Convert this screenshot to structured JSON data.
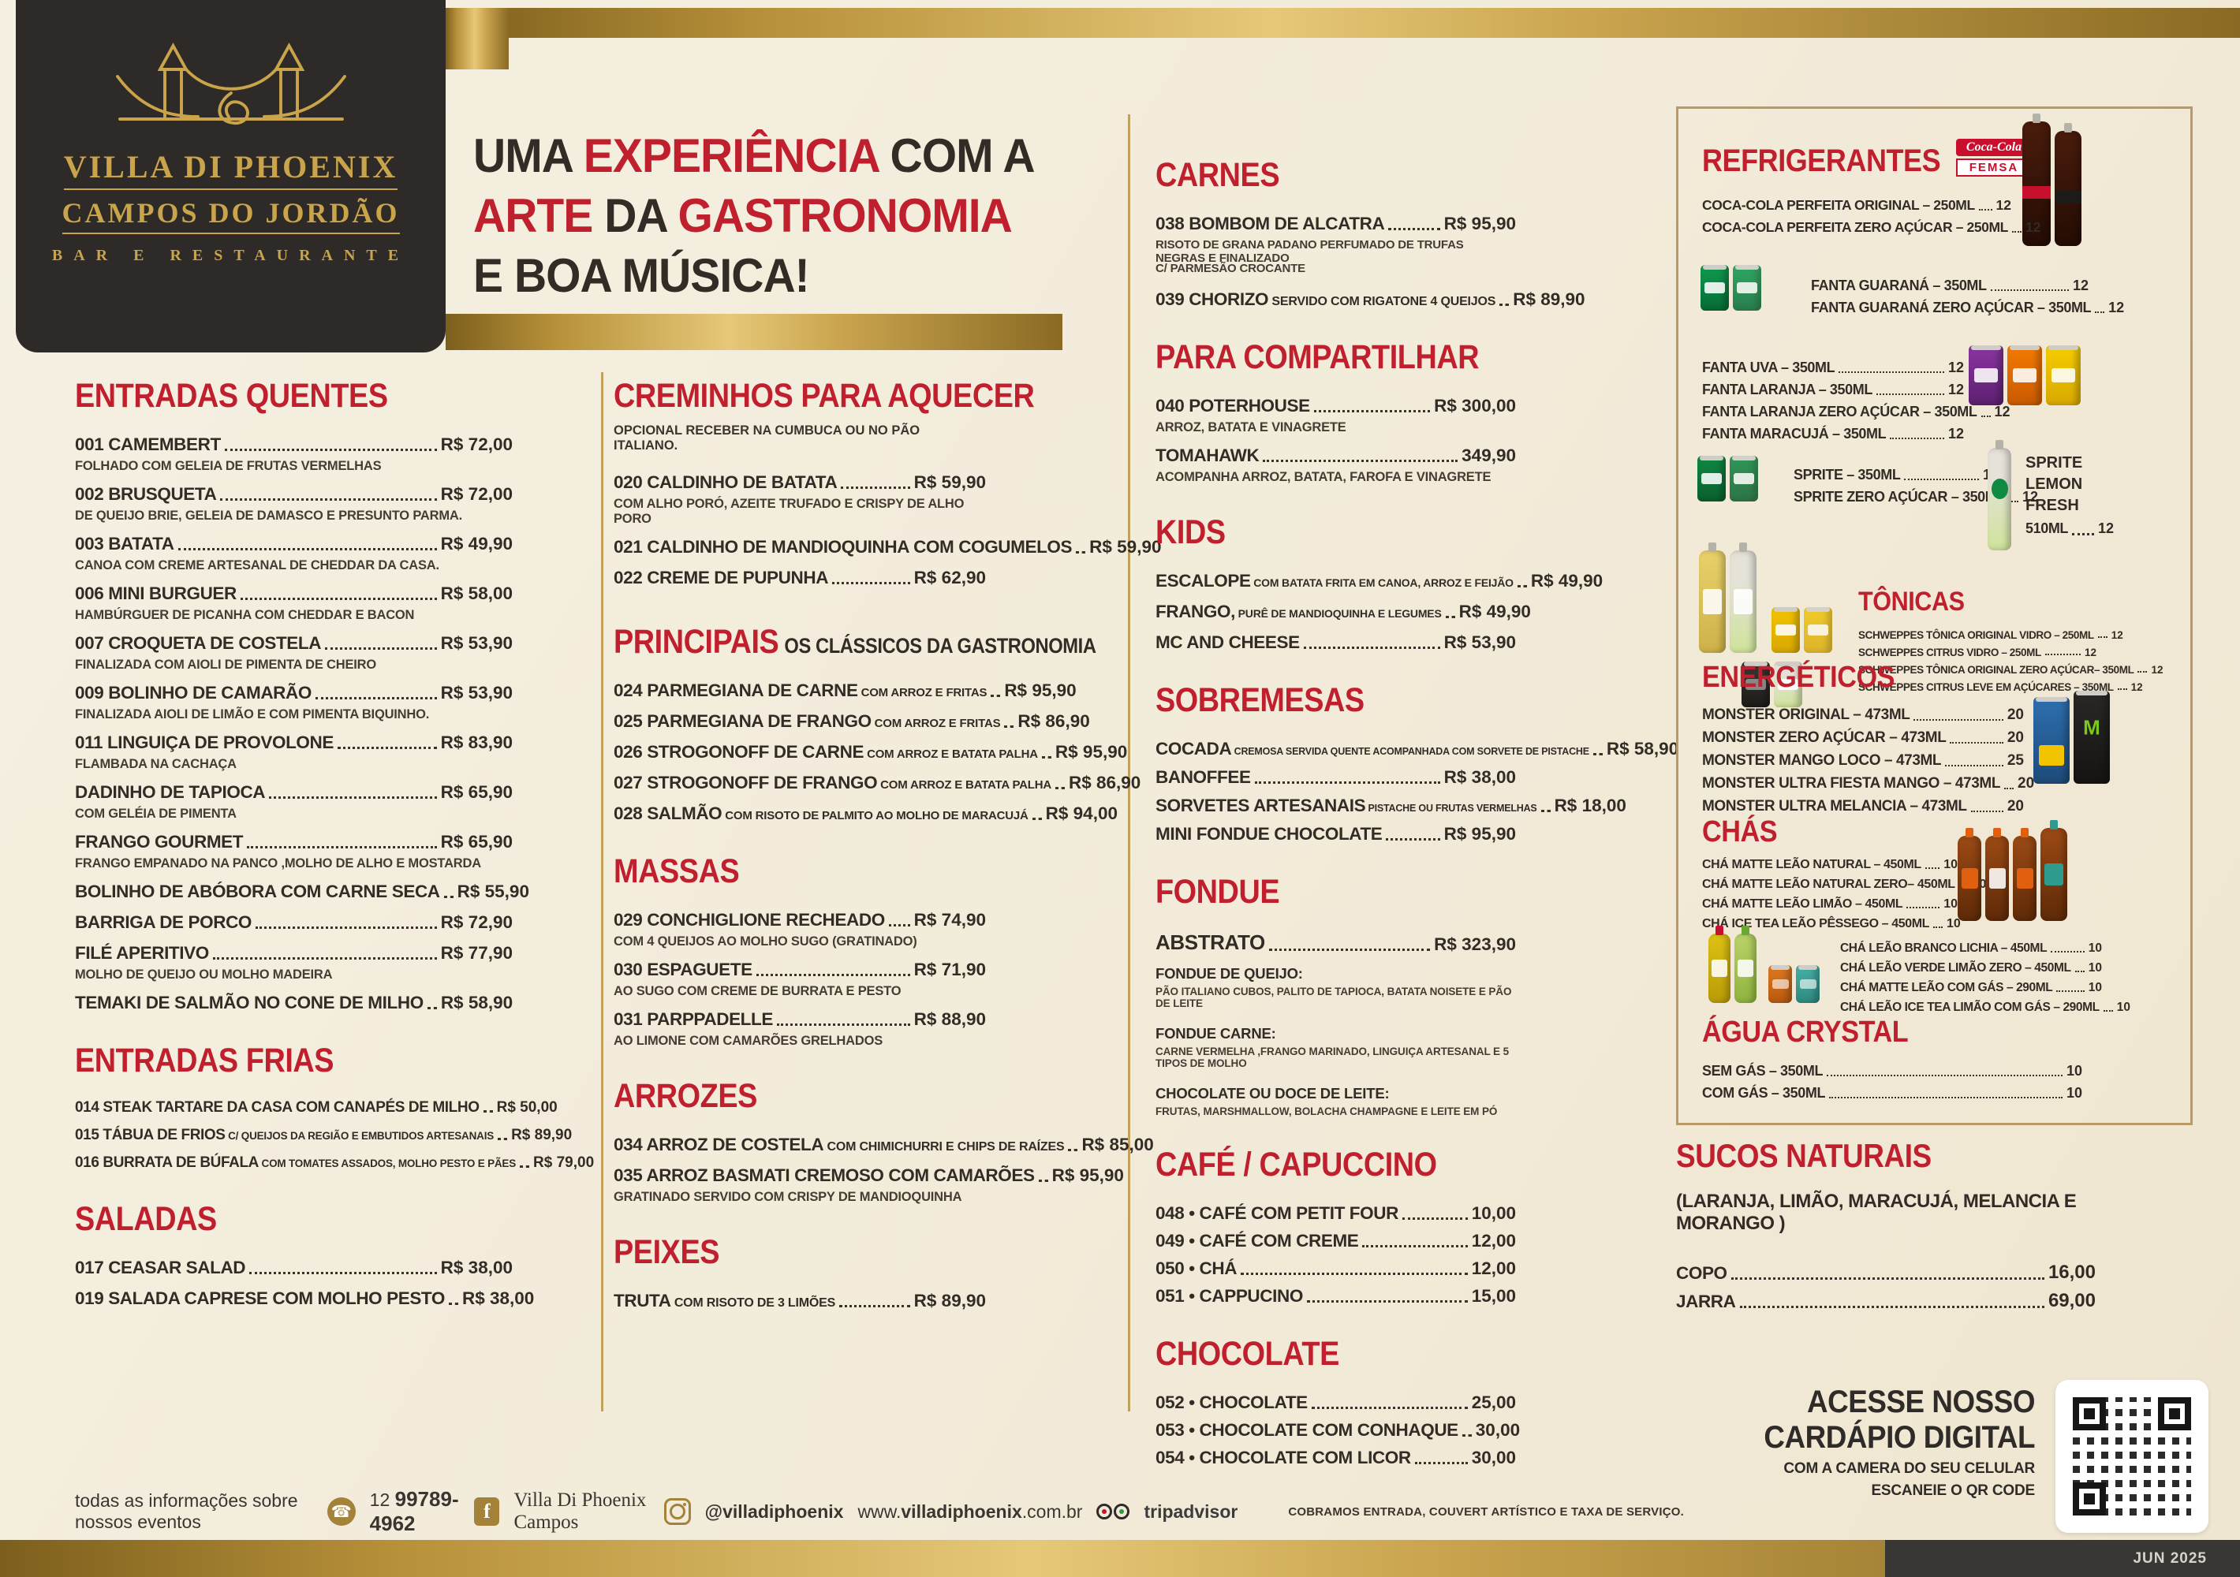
{
  "logo": {
    "line1": "VILLA DI PHOENIX",
    "line2": "CAMPOS DO JORDÃO",
    "line3": "BAR E RESTAURANTE"
  },
  "headline": {
    "l1a": "UMA ",
    "l1b": "EXPERIÊNCIA",
    "l1c": " COM A",
    "l2a": "ARTE",
    "l2b": " DA ",
    "l2c": "GASTRONOMIA",
    "l3": "E BOA MÚSICA!"
  },
  "columns": [
    {
      "sections": [
        {
          "key": "entradas-quentes",
          "title": "ENTRADAS QUENTES",
          "items": [
            {
              "code": "001",
              "name": "CAMEMBERT",
              "price": "R$ 72,00",
              "desc": [
                "FOLHADO COM GELEIA DE FRUTAS VERMELHAS"
              ]
            },
            {
              "code": "002",
              "name": "BRUSQUETA",
              "price": "R$ 72,00",
              "desc": [
                "DE QUEIJO BRIE, GELEIA DE DAMASCO E PRESUNTO PARMA."
              ]
            },
            {
              "code": "003",
              "name": "BATATA",
              "price": "R$ 49,90",
              "desc": [
                "CANOA COM CREME ARTESANAL DE CHEDDAR DA CASA."
              ]
            },
            {
              "code": "006",
              "name": "MINI BURGUER",
              "price": "R$ 58,00",
              "desc": [
                "HAMBÚRGUER DE PICANHA COM CHEDDAR E BACON"
              ]
            },
            {
              "code": "007",
              "name": "CROQUETA DE COSTELA",
              "price": "R$ 53,90",
              "desc": [
                "FINALIZADA COM AIOLI DE PIMENTA DE CHEIRO"
              ]
            },
            {
              "code": "009",
              "name": "BOLINHO DE CAMARÃO",
              "price": "R$ 53,90",
              "desc": [
                "FINALIZADA AIOLI DE LIMÃO E COM PIMENTA BIQUINHO."
              ]
            },
            {
              "code": "011",
              "name": "LINGUIÇA DE PROVOLONE",
              "price": "R$ 83,90",
              "desc": [
                "FLAMBADA NA CACHAÇA"
              ]
            },
            {
              "name": "DADINHO DE TAPIOCA",
              "price": "R$ 65,90",
              "desc": [
                "COM GELÉIA DE PIMENTA"
              ]
            },
            {
              "name": "FRANGO GOURMET",
              "price": "R$ 65,90",
              "desc": [
                "FRANGO EMPANADO NA PANCO ,MOLHO DE ALHO E MOSTARDA"
              ]
            },
            {
              "name": "BOLINHO DE ABÓBORA COM CARNE SECA",
              "price": "R$ 55,90"
            },
            {
              "name": "BARRIGA DE PORCO",
              "price": "R$ 72,90"
            },
            {
              "name": "FILÉ APERITIVO",
              "price": "R$ 77,90",
              "desc": [
                "MOLHO DE QUEIJO OU MOLHO MADEIRA"
              ]
            },
            {
              "name": "TEMAKI DE SALMÃO NO CONE DE MILHO",
              "price": "R$ 58,90"
            }
          ]
        },
        {
          "key": "entradas-frias",
          "title": "ENTRADAS FRIAS",
          "items": [
            {
              "code": "014",
              "name": "STEAK TARTARE DA CASA COM CANAPÉS DE MILHO",
              "price": "R$ 50,00"
            },
            {
              "code": "015",
              "name": "TÁBUA DE FRIOS",
              "small": "C/ QUEIJOS DA REGIÃO E EMBUTIDOS ARTESANAIS",
              "price": "R$ 89,90"
            },
            {
              "code": "016",
              "name": "BURRATA DE BÚFALA",
              "small": "COM TOMATES ASSADOS, MOLHO PESTO E PÃES",
              "price": "R$ 79,00"
            }
          ]
        },
        {
          "key": "saladas",
          "title": "SALADAS",
          "items": [
            {
              "code": "017",
              "name": "CEASAR SALAD",
              "price": "R$ 38,00"
            },
            {
              "code": "019",
              "name": "SALADA CAPRESE COM MOLHO PESTO",
              "price": "R$ 38,00"
            }
          ]
        }
      ]
    },
    {
      "sections": [
        {
          "key": "creminhos",
          "title": "CREMINHOS PARA AQUECER",
          "subtitle": "OPCIONAL RECEBER NA CUMBUCA OU NO PÃO ITALIANO.",
          "items": [
            {
              "code": "020",
              "name": "CALDINHO DE BATATA",
              "price": "R$ 59,90",
              "desc": [
                "COM ALHO PORÓ, AZEITE TRUFADO E CRISPY DE ALHO PORO"
              ]
            },
            {
              "code": "021",
              "name": "CALDINHO DE MANDIOQUINHA COM COGUMELOS",
              "price": "R$ 59,90"
            },
            {
              "code": "022",
              "name": "CREME DE PUPUNHA",
              "price": "R$ 62,90"
            }
          ]
        },
        {
          "key": "principais",
          "title": "PRINCIPAIS",
          "suffix": "OS CLÁSSICOS DA GASTRONOMIA",
          "items": [
            {
              "code": "024",
              "name": "PARMEGIANA DE CARNE",
              "small": "COM ARROZ E FRITAS",
              "price": "R$ 95,90"
            },
            {
              "code": "025",
              "name": "PARMEGIANA DE FRANGO",
              "small": "COM ARROZ E FRITAS",
              "price": "R$ 86,90"
            },
            {
              "code": "026",
              "name": "STROGONOFF DE CARNE",
              "small": "COM ARROZ E BATATA PALHA",
              "price": "R$ 95,90"
            },
            {
              "code": "027",
              "name": "STROGONOFF DE FRANGO",
              "small": "COM ARROZ E BATATA PALHA",
              "price": "R$ 86,90"
            },
            {
              "code": "028",
              "name": "SALMÃO",
              "small": "COM RISOTO DE PALMITO AO MOLHO DE MARACUJÁ",
              "price": "R$ 94,00"
            }
          ]
        },
        {
          "key": "massas",
          "title": "MASSAS",
          "items": [
            {
              "code": "029",
              "name": "CONCHIGLIONE RECHEADO",
              "price": "R$ 74,90",
              "desc": [
                "COM 4 QUEIJOS AO MOLHO SUGO  (GRATINADO)"
              ]
            },
            {
              "code": "030",
              "name": "ESPAGUETE",
              "price": "R$ 71,90",
              "desc": [
                "AO SUGO COM CREME DE BURRATA E PESTO"
              ]
            },
            {
              "code": "031",
              "name": "PARPPADELLE",
              "price": "R$ 88,90",
              "desc": [
                "AO LIMONE COM CAMARÕES GRELHADOS"
              ]
            }
          ]
        },
        {
          "key": "arrozes",
          "title": "ARROZES",
          "items": [
            {
              "code": "034",
              "name": "ARROZ DE COSTELA",
              "small": "COM CHIMICHURRI E CHIPS DE RAÍZES",
              "price": "R$ 85,00"
            },
            {
              "code": "035",
              "name": "ARROZ BASMATI CREMOSO COM CAMARÕES",
              "price": "R$ 95,90",
              "desc": [
                "GRATINADO SERVIDO COM CRISPY DE MANDIOQUINHA"
              ]
            }
          ]
        },
        {
          "key": "peixes",
          "title": "PEIXES",
          "items": [
            {
              "name": "TRUTA",
              "small": "COM RISOTO DE 3 LIMÕES",
              "price": "R$ 89,90"
            }
          ]
        }
      ]
    },
    {
      "sections": [
        {
          "key": "carnes",
          "title": "CARNES",
          "items": [
            {
              "code": "038",
              "name": "BOMBOM DE ALCATRA",
              "price": "R$ 95,90",
              "desc": [
                "RISOTO DE GRANA PADANO PERFUMADO DE TRUFAS NEGRAS E FINALIZADO",
                "C/ PARMESÃO CROCANTE"
              ]
            },
            {
              "code": "039",
              "name": "CHORIZO",
              "small": "SERVIDO COM RIGATONE 4 QUEIJOS",
              "price": "R$ 89,90"
            }
          ]
        },
        {
          "key": "compartilhar",
          "title": "PARA COMPARTILHAR",
          "items": [
            {
              "code": "040",
              "name": "POTERHOUSE",
              "price": "R$ 300,00",
              "desc": [
                "ARROZ, BATATA E VINAGRETE"
              ]
            },
            {
              "name": "TOMAHAWK",
              "price": "349,90",
              "desc": [
                "ACOMPANHA ARROZ, BATATA, FAROFA E VINAGRETE"
              ]
            }
          ]
        },
        {
          "key": "kids",
          "title": "KIDS",
          "items": [
            {
              "name": "ESCALOPE",
              "small": "COM BATATA FRITA EM CANOA, ARROZ E FEIJÃO",
              "price": "R$ 49,90"
            },
            {
              "name": "FRANGO,",
              "small": "PURÊ DE MANDIOQUINHA E LEGUMES",
              "price": "R$ 49,90"
            },
            {
              "name": "MC AND CHEESE",
              "price": "R$ 53,90"
            }
          ]
        },
        {
          "key": "sobremesas",
          "title": "SOBREMESAS",
          "items": [
            {
              "name": "COCADA",
              "small": "CREMOSA SERVIDA QUENTE ACOMPANHADA COM SORVETE DE PISTACHE",
              "price": "R$ 58,90"
            },
            {
              "name": "BANOFFEE",
              "price": "R$ 38,00"
            },
            {
              "name": "SORVETES ARTESANAIS",
              "small": "PISTACHE OU FRUTAS VERMELHAS",
              "price": "R$ 18,00"
            },
            {
              "name": "MINI FONDUE CHOCOLATE",
              "price": "R$ 95,90"
            }
          ]
        },
        {
          "key": "fondue",
          "title": "FONDUE",
          "items": [
            {
              "name": "ABSTRATO",
              "price": "R$ 323,90"
            },
            {
              "label": "FONDUE DE QUEIJO:",
              "ndesc": "PÃO ITALIANO CUBOS, PALITO DE TAPIOCA, BATATA NOISETE E  PÃO DE LEITE"
            },
            {
              "label": "FONDUE  CARNE:",
              "ndesc": "CARNE VERMELHA ,FRANGO MARINADO, LINGUIÇA ARTESANAL E 5 TIPOS DE MOLHO"
            },
            {
              "label": "CHOCOLATE OU DOCE DE LEITE:",
              "ndesc": "FRUTAS, MARSHMALLOW, BOLACHA CHAMPAGNE E LEITE EM PÓ"
            }
          ]
        },
        {
          "key": "cafe",
          "title": "CAFÉ / CAPUCCINO",
          "items": [
            {
              "code": "048 •",
              "name": "CAFÉ COM PETIT FOUR",
              "price": "10,00"
            },
            {
              "code": "049 •",
              "name": "CAFÉ COM CREME",
              "price": "12,00"
            },
            {
              "code": "050 •",
              "name": "CHÁ",
              "price": "12,00"
            },
            {
              "code": "051 •",
              "name": "CAPPUCINO",
              "price": "15,00"
            }
          ]
        },
        {
          "key": "chocolate",
          "title": "CHOCOLATE",
          "items": [
            {
              "code": "052 •",
              "name": "CHOCOLATE",
              "price": "25,00"
            },
            {
              "code": "053 •",
              "name": "CHOCOLATE COM CONHAQUE",
              "price": "30,00"
            },
            {
              "code": "054 •",
              "name": "CHOCOLATE COM LICOR",
              "price": "30,00"
            }
          ]
        }
      ]
    }
  ],
  "panel": {
    "titles": {
      "refrigerantes": "REFRIGERANTES",
      "tonicas": "TÔNICAS",
      "energeticos": "ENERGÉTICOS",
      "chas": "CHÁS",
      "agua": "ÁGUA CRYSTAL"
    },
    "femsa": {
      "script": "Coca-Cola",
      "word": "FEMSA"
    },
    "lists": {
      "coca": [
        {
          "name": "COCA-COLA PERFEITA ORIGINAL – 250ML",
          "price": "12"
        },
        {
          "name": "COCA-COLA PERFEITA ZERO AÇÚCAR – 250ML",
          "price": "12"
        }
      ],
      "fanta_guarana": [
        {
          "name": "FANTA GUARANÁ – 350ML",
          "price": "12"
        },
        {
          "name": "FANTA GUARANÁ ZERO AÇÚCAR – 350ML",
          "price": "12"
        }
      ],
      "fanta": [
        {
          "name": "FANTA UVA – 350ML",
          "price": "12"
        },
        {
          "name": "FANTA LARANJA – 350ML",
          "price": "12"
        },
        {
          "name": "FANTA LARANJA ZERO AÇÚCAR – 350ML",
          "price": "12"
        },
        {
          "name": "FANTA MARACUJÁ – 350ML",
          "price": "12"
        }
      ],
      "sprite": [
        {
          "name": "SPRITE – 350ML",
          "price": "12"
        },
        {
          "name": "SPRITE ZERO AÇÚCAR – 350ML",
          "price": "12"
        }
      ],
      "tonicas": [
        {
          "name": "SCHWEPPES TÔNICA ORIGINAL VIDRO – 250ML",
          "price": "12"
        },
        {
          "name": "SCHWEPPES CITRUS VIDRO – 250ML",
          "price": "12"
        },
        {
          "name": "SCHWEPPES TÔNICA ORIGINAL  ZERO AÇÚCAR– 350ML",
          "price": "12"
        },
        {
          "name": "SCHWEPPES CITRUS LEVE EM AÇÚCARES – 350ML",
          "price": "12"
        }
      ],
      "energeticos": [
        {
          "name": "MONSTER ORIGINAL – 473ML",
          "price": "20"
        },
        {
          "name": "MONSTER ZERO AÇÚCAR – 473ML",
          "price": "20"
        },
        {
          "name": "MONSTER MANGO LOCO – 473ML",
          "price": "25"
        },
        {
          "name": "MONSTER ULTRA FIESTA MANGO – 473ML",
          "price": "20"
        },
        {
          "name": "MONSTER ULTRA MELANCIA – 473ML",
          "price": "20"
        }
      ],
      "chas1": [
        {
          "name": "CHÁ MATTE LEÃO NATURAL – 450ML",
          "price": "10"
        },
        {
          "name": "CHÁ MATTE LEÃO NATURAL ZERO– 450ML",
          "price": "10"
        },
        {
          "name": "CHÁ MATTE LEÃO LIMÃO – 450ML",
          "price": "10"
        },
        {
          "name": "CHÁ ICE TEA LEÃO PÊSSEGO – 450ML",
          "price": "10"
        }
      ],
      "chas2": [
        {
          "name": "CHÁ LEÃO BRANCO LICHIA – 450ML",
          "price": "10"
        },
        {
          "name": "CHÁ LEÃO VERDE LIMÃO ZERO – 450ML",
          "price": "10"
        },
        {
          "name": "CHÁ MATTE LEÃO COM GÁS – 290ML",
          "price": "10"
        },
        {
          "name": "CHÁ LEÃO ICE TEA LIMÃO COM GÁS – 290ML",
          "price": "10"
        }
      ],
      "agua": [
        {
          "name": "SEM GÁS – 350ML",
          "price": "10"
        },
        {
          "name": "COM GÁS – 350ML",
          "price": "10"
        }
      ]
    },
    "sprite_lemon": {
      "l1": "SPRITE",
      "l2": "LEMON",
      "l3": "FRESH",
      "size": "510ML",
      "price": "12"
    }
  },
  "sucos": {
    "title": "SUCOS NATURAIS",
    "subtitle": "(LARANJA, LIMÃO, MARACUJÁ, MELANCIA E MORANGO )",
    "items": [
      {
        "name": "COPO",
        "price": "16,00"
      },
      {
        "name": "JARRA",
        "price": "69,00"
      }
    ]
  },
  "digital": {
    "l1": "ACESSE NOSSO",
    "l2": "CARDÁPIO DIGITAL",
    "l3": "COM A CAMERA DO SEU CELULAR",
    "l4": "ESCANEIE O QR CODE"
  },
  "footer": {
    "events": "todas as informações sobre nossos eventos",
    "phone_prefix": "12",
    "phone": "99789-4962",
    "facebook": "Villa Di Phoenix Campos",
    "instagram": "@villadiphoenix",
    "web_pre": "www.",
    "web_bold": "villadiphoenix",
    "web_post": ".com.br",
    "trip": "tripadvisor",
    "notice": "COBRAMOS ENTRADA, COUVERT ARTÍSTICO E TAXA DE SERVIÇO.",
    "date": "JUN 2025"
  }
}
